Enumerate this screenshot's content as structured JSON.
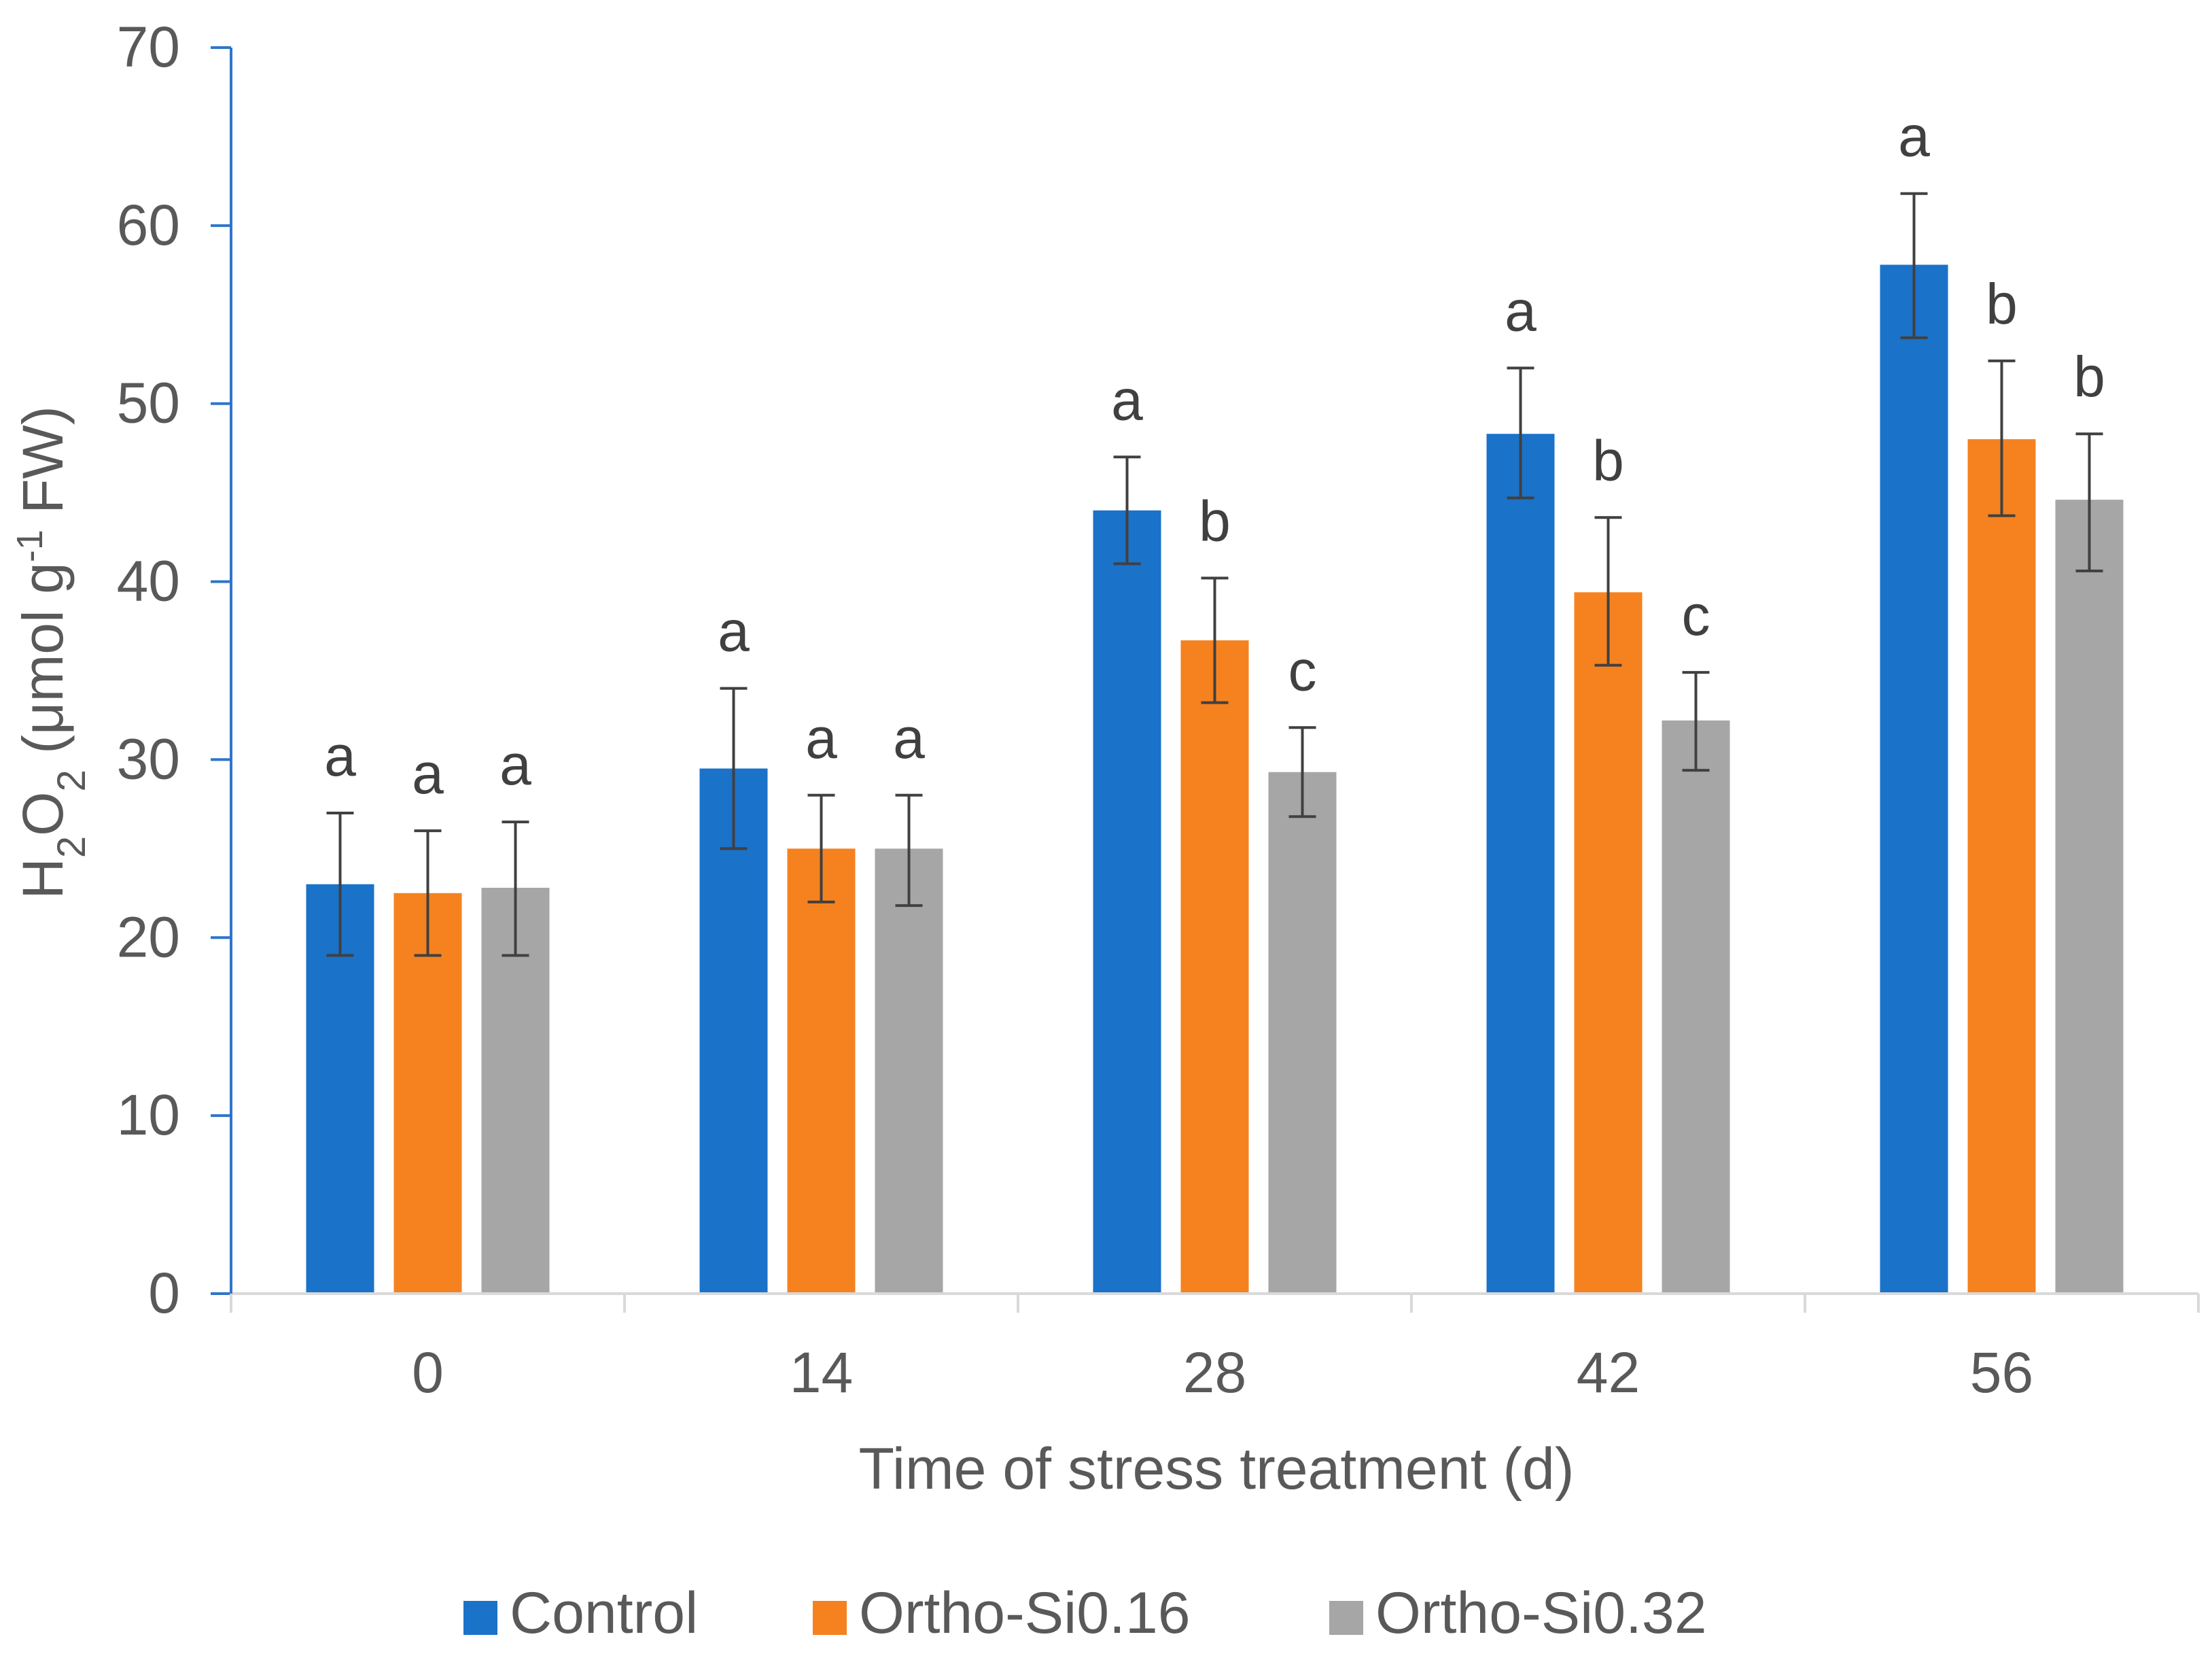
{
  "chart_data": {
    "type": "bar",
    "xlabel": "Time of stress treatment (d)",
    "ylabel": {
      "prefix": "H",
      "sub1": "2",
      "mid": "O",
      "sub2": "2",
      "unit_a": " (μmol g",
      "sup": "-1",
      "unit_b": " FW)"
    },
    "categories": [
      "0",
      "14",
      "28",
      "42",
      "56"
    ],
    "ylim": [
      0,
      70
    ],
    "yticks": [
      0,
      10,
      20,
      30,
      40,
      50,
      60,
      70
    ],
    "legend_position": "bottom",
    "grid": false,
    "colors": {
      "axis_y": "#2e75c9",
      "axis_x": "#d9d9d9",
      "error_bar": "#404040"
    },
    "series": [
      {
        "name": "Control",
        "color": "#1a72c9",
        "values": [
          23.0,
          29.5,
          44.0,
          48.3,
          57.8
        ],
        "err_low": [
          19.0,
          25.0,
          41.0,
          44.7,
          53.7
        ],
        "err_high": [
          27.0,
          34.0,
          47.0,
          52.0,
          61.8
        ],
        "letters": [
          "a",
          "a",
          "a",
          "a",
          "a"
        ]
      },
      {
        "name": "Ortho-Si0.16",
        "color": "#f5821f",
        "values": [
          22.5,
          25.0,
          36.7,
          39.4,
          48.0
        ],
        "err_low": [
          19.0,
          22.0,
          33.2,
          35.3,
          43.7
        ],
        "err_high": [
          26.0,
          28.0,
          40.2,
          43.6,
          52.4
        ],
        "letters": [
          "a",
          "a",
          "b",
          "b",
          "b"
        ]
      },
      {
        "name": "Ortho-Si0.32",
        "color": "#a6a6a6",
        "values": [
          22.8,
          25.0,
          29.3,
          32.2,
          44.6
        ],
        "err_low": [
          19.0,
          21.8,
          26.8,
          29.4,
          40.6
        ],
        "err_high": [
          26.5,
          28.0,
          31.8,
          34.9,
          48.3
        ],
        "letters": [
          "a",
          "a",
          "c",
          "c",
          "b"
        ]
      }
    ]
  }
}
